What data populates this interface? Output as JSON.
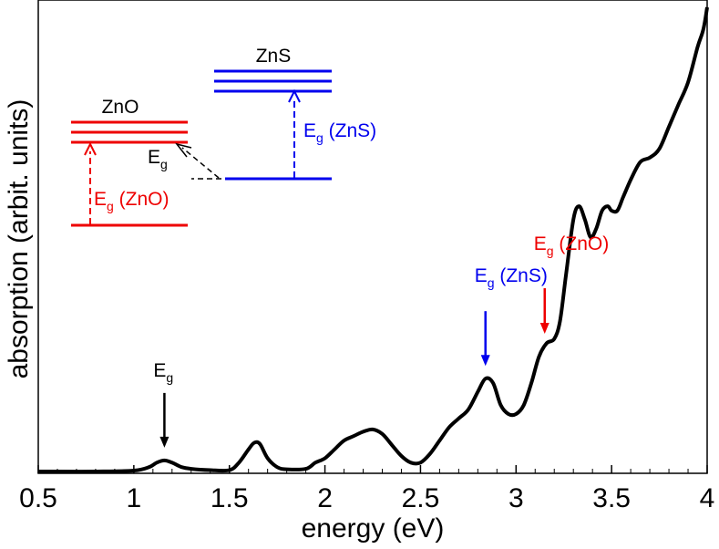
{
  "chart_data": {
    "type": "line",
    "title": "",
    "xlabel": "energy (eV)",
    "ylabel": "absorption (arbit. units)",
    "xlim": [
      0.5,
      4.0
    ],
    "ylim": [
      0,
      1
    ],
    "xticks": [
      "0.5",
      "1",
      "1.5",
      "2",
      "2.5",
      "3",
      "3.5",
      "4"
    ],
    "grid": false,
    "series": [
      {
        "name": "absorption",
        "color": "#000000",
        "x": [
          0.5,
          0.8,
          1.0,
          1.08,
          1.12,
          1.16,
          1.2,
          1.25,
          1.3,
          1.4,
          1.5,
          1.55,
          1.6,
          1.63,
          1.66,
          1.7,
          1.75,
          1.8,
          1.9,
          1.95,
          2.0,
          2.05,
          2.1,
          2.15,
          2.2,
          2.25,
          2.3,
          2.35,
          2.4,
          2.45,
          2.5,
          2.55,
          2.6,
          2.65,
          2.7,
          2.75,
          2.8,
          2.84,
          2.88,
          2.92,
          2.96,
          3.0,
          3.04,
          3.08,
          3.12,
          3.16,
          3.2,
          3.23,
          3.26,
          3.3,
          3.33,
          3.36,
          3.39,
          3.42,
          3.45,
          3.48,
          3.5,
          3.53,
          3.56,
          3.6,
          3.65,
          3.7,
          3.75,
          3.8,
          3.85,
          3.9,
          3.95,
          3.98,
          4.0
        ],
        "values": [
          0.0,
          0.0,
          0.002,
          0.01,
          0.02,
          0.025,
          0.02,
          0.01,
          0.006,
          0.003,
          0.003,
          0.02,
          0.05,
          0.065,
          0.062,
          0.03,
          0.01,
          0.005,
          0.006,
          0.02,
          0.03,
          0.05,
          0.07,
          0.08,
          0.09,
          0.095,
          0.085,
          0.06,
          0.035,
          0.02,
          0.02,
          0.04,
          0.07,
          0.1,
          0.12,
          0.14,
          0.18,
          0.21,
          0.2,
          0.15,
          0.13,
          0.13,
          0.15,
          0.2,
          0.26,
          0.29,
          0.3,
          0.34,
          0.44,
          0.57,
          0.6,
          0.57,
          0.53,
          0.55,
          0.59,
          0.6,
          0.59,
          0.59,
          0.62,
          0.66,
          0.7,
          0.71,
          0.73,
          0.78,
          0.83,
          0.88,
          0.96,
          1.0,
          1.05
        ]
      }
    ],
    "annotations": [
      {
        "name": "eg-annotation",
        "label": "E",
        "subscript": "g",
        "suffix": "",
        "x": 1.16,
        "color": "#000000"
      },
      {
        "name": "eg-zns-annotation",
        "label": "E",
        "subscript": "g",
        "suffix": " (ZnS)",
        "x": 2.84,
        "color": "#0000ee"
      },
      {
        "name": "eg-zno-annotation",
        "label": "E",
        "subscript": "g",
        "suffix": " (ZnO)",
        "x": 3.15,
        "color": "#ee0000"
      }
    ],
    "inset": {
      "zno": {
        "label": "ZnO",
        "color": "#ee0000"
      },
      "zns": {
        "label": "ZnS",
        "color": "#0000ee"
      },
      "eg_zno": {
        "label": "E",
        "subscript": "g",
        "suffix": " (ZnO)",
        "color": "#ee0000"
      },
      "eg_zns": {
        "label": "E",
        "subscript": "g",
        "suffix": " (ZnS)",
        "color": "#0000ee"
      },
      "eg": {
        "label": "E",
        "subscript": "g",
        "color": "#000000"
      }
    }
  }
}
